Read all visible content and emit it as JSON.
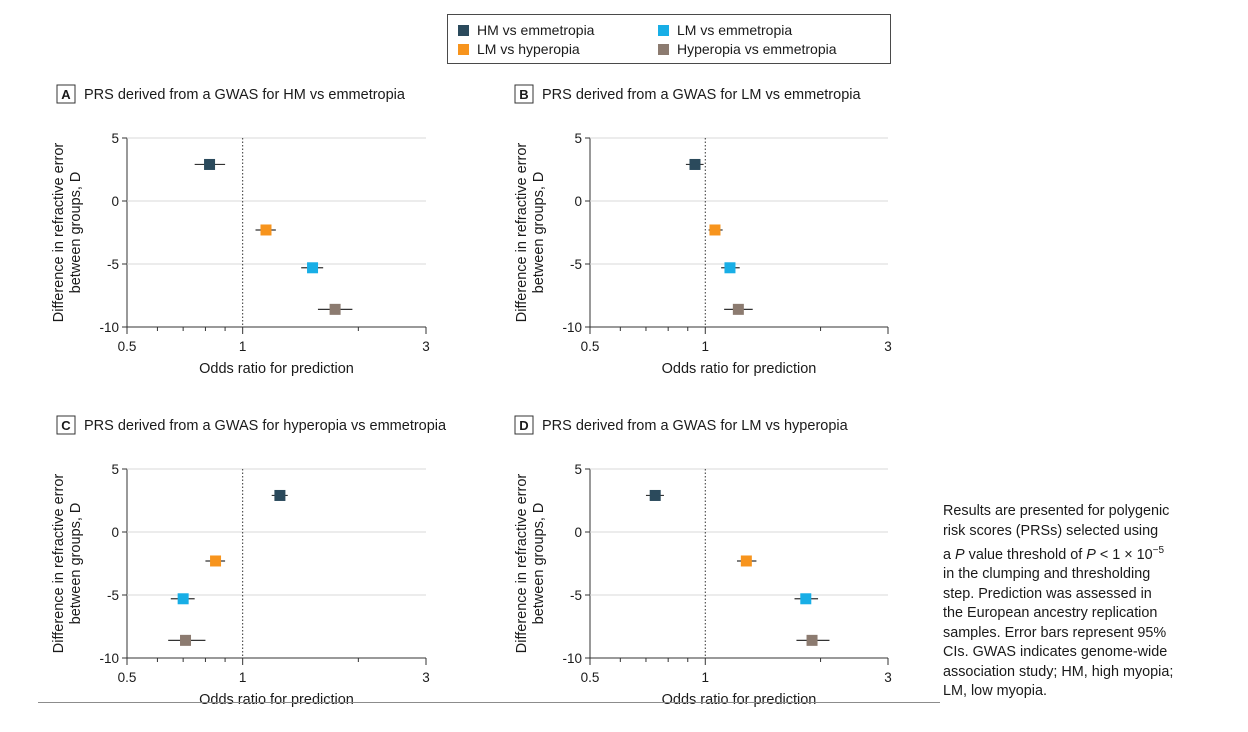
{
  "legend": [
    {
      "label": "HM vs emmetropia",
      "color": "#2b4a5c"
    },
    {
      "label": "LM vs emmetropia",
      "color": "#18aee6"
    },
    {
      "label": "LM vs hyperopia",
      "color": "#f7941d"
    },
    {
      "label": "Hyperopia vs emmetropia",
      "color": "#8c7b70"
    }
  ],
  "caption": {
    "line1": "Results are presented for polygenic",
    "line2": "risk scores (PRSs) selected using",
    "line3_pre": "a ",
    "line3_italic": "P",
    "line3_mid": " value threshold of ",
    "line3_italic2": "P",
    "line3_post": " < 1 × 10",
    "line3_sup": "−5",
    "line4": "in the clumping and thresholding",
    "line5": "step. Prediction was assessed in",
    "line6": "the European ancestry replication",
    "line7": "samples. Error bars represent 95%",
    "line8": "CIs. GWAS indicates genome-wide",
    "line9": "association study; HM, high myopia;",
    "line10": "LM, low myopia."
  },
  "chart_data": [
    {
      "type": "scatter",
      "panel": "A",
      "title": "PRS derived from a GWAS for HM vs emmetropia",
      "xlabel": "Odds ratio for prediction",
      "ylabel": "Difference in refractive error between groups, D",
      "x_scale": "log",
      "xlim": [
        0.5,
        3
      ],
      "ylim": [
        -10,
        5
      ],
      "x_ticks": [
        "0.5",
        "1",
        "3"
      ],
      "y_ticks": [
        "5",
        "0",
        "-5",
        "-10"
      ],
      "reference_line_x": 1,
      "points": [
        {
          "series": "HM vs emmetropia",
          "y": 2.9,
          "or": 0.82,
          "ci_low": 0.75,
          "ci_high": 0.9
        },
        {
          "series": "LM vs hyperopia",
          "y": -2.3,
          "or": 1.15,
          "ci_low": 1.08,
          "ci_high": 1.22
        },
        {
          "series": "LM vs emmetropia",
          "y": -5.3,
          "or": 1.52,
          "ci_low": 1.42,
          "ci_high": 1.62
        },
        {
          "series": "Hyperopia vs emmetropia",
          "y": -8.6,
          "or": 1.74,
          "ci_low": 1.57,
          "ci_high": 1.93
        }
      ]
    },
    {
      "type": "scatter",
      "panel": "B",
      "title": "PRS derived from a GWAS for LM vs emmetropia",
      "xlabel": "Odds ratio for prediction",
      "ylabel": "Difference in refractive error between groups, D",
      "x_scale": "log",
      "xlim": [
        0.5,
        3
      ],
      "ylim": [
        -10,
        5
      ],
      "x_ticks": [
        "0.5",
        "1",
        "3"
      ],
      "y_ticks": [
        "5",
        "0",
        "-5",
        "-10"
      ],
      "reference_line_x": 1,
      "points": [
        {
          "series": "HM vs emmetropia",
          "y": 2.9,
          "or": 0.94,
          "ci_low": 0.89,
          "ci_high": 0.99
        },
        {
          "series": "LM vs hyperopia",
          "y": -2.3,
          "or": 1.06,
          "ci_low": 1.02,
          "ci_high": 1.11
        },
        {
          "series": "LM vs emmetropia",
          "y": -5.3,
          "or": 1.16,
          "ci_low": 1.1,
          "ci_high": 1.23
        },
        {
          "series": "Hyperopia vs emmetropia",
          "y": -8.6,
          "or": 1.22,
          "ci_low": 1.12,
          "ci_high": 1.33
        }
      ]
    },
    {
      "type": "scatter",
      "panel": "C",
      "title": "PRS derived from a GWAS for hyperopia vs emmetropia",
      "xlabel": "Odds ratio for prediction",
      "ylabel": "Difference in refractive error between groups, D",
      "x_scale": "log",
      "xlim": [
        0.5,
        3
      ],
      "ylim": [
        -10,
        5
      ],
      "x_ticks": [
        "0.5",
        "1",
        "3"
      ],
      "y_ticks": [
        "5",
        "0",
        "-5",
        "-10"
      ],
      "reference_line_x": 1,
      "points": [
        {
          "series": "HM vs emmetropia",
          "y": 2.9,
          "or": 1.25,
          "ci_low": 1.19,
          "ci_high": 1.31
        },
        {
          "series": "LM vs hyperopia",
          "y": -2.3,
          "or": 0.85,
          "ci_low": 0.8,
          "ci_high": 0.9
        },
        {
          "series": "LM vs emmetropia",
          "y": -5.3,
          "or": 0.7,
          "ci_low": 0.65,
          "ci_high": 0.75
        },
        {
          "series": "Hyperopia vs emmetropia",
          "y": -8.6,
          "or": 0.71,
          "ci_low": 0.64,
          "ci_high": 0.8
        }
      ]
    },
    {
      "type": "scatter",
      "panel": "D",
      "title": "PRS derived from a GWAS for LM vs hyperopia",
      "xlabel": "Odds ratio for prediction",
      "ylabel": "Difference in refractive error between groups, D",
      "x_scale": "log",
      "xlim": [
        0.5,
        3
      ],
      "ylim": [
        -10,
        5
      ],
      "x_ticks": [
        "0.5",
        "1",
        "3"
      ],
      "y_ticks": [
        "5",
        "0",
        "-5",
        "-10"
      ],
      "reference_line_x": 1,
      "points": [
        {
          "series": "HM vs emmetropia",
          "y": 2.9,
          "or": 0.74,
          "ci_low": 0.7,
          "ci_high": 0.78
        },
        {
          "series": "LM vs hyperopia",
          "y": -2.3,
          "or": 1.28,
          "ci_low": 1.21,
          "ci_high": 1.36
        },
        {
          "series": "LM vs emmetropia",
          "y": -5.3,
          "or": 1.83,
          "ci_low": 1.71,
          "ci_high": 1.97
        },
        {
          "series": "Hyperopia vs emmetropia",
          "y": -8.6,
          "or": 1.9,
          "ci_low": 1.73,
          "ci_high": 2.11
        }
      ]
    }
  ]
}
